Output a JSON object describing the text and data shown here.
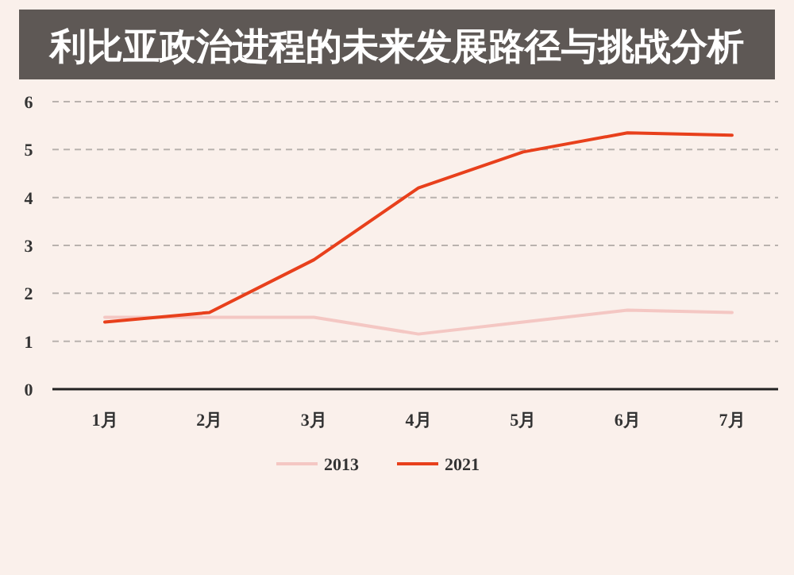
{
  "chart_data": {
    "type": "line",
    "title": "利比亚政治进程的未来发展路径与挑战分析",
    "categories": [
      "1月",
      "2月",
      "3月",
      "4月",
      "5月",
      "6月",
      "7月"
    ],
    "series": [
      {
        "name": "2013",
        "color": "#f4c7c3",
        "values": [
          1.5,
          1.5,
          1.5,
          1.15,
          1.4,
          1.65,
          1.6
        ]
      },
      {
        "name": "2021",
        "color": "#e8401c",
        "values": [
          1.4,
          1.6,
          2.7,
          4.2,
          4.95,
          5.35,
          5.3
        ]
      }
    ],
    "ylim": [
      0,
      6
    ],
    "yticks": [
      0,
      1,
      2,
      3,
      4,
      5,
      6
    ],
    "grid": "y",
    "legend": "bottom",
    "marker": "none",
    "line_style": "solid"
  }
}
